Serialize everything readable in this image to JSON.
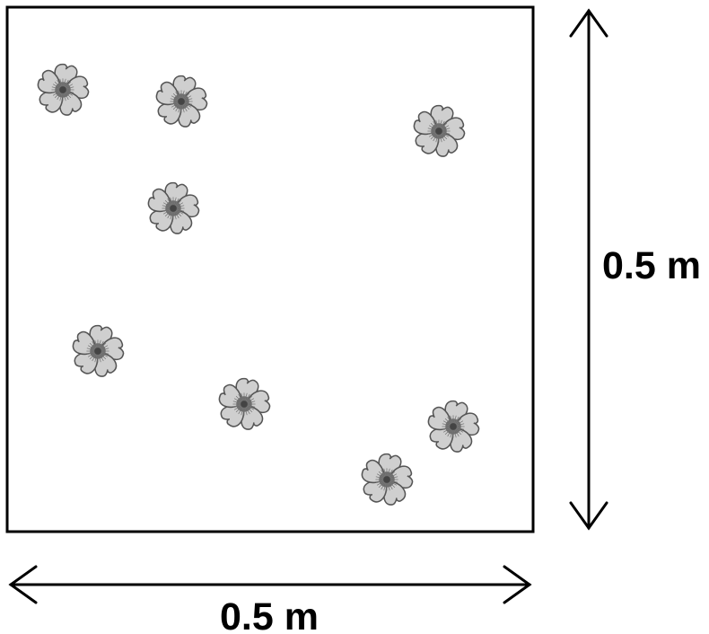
{
  "quadrat": {
    "width_label": "0.5 m",
    "height_label": "0.5 m",
    "flower_count": 8,
    "flower_icon": "flower-icon"
  },
  "colors": {
    "outline": "#000000",
    "petal_fill": "#cfcfcf",
    "petal_stroke": "#555555",
    "center": "#666666"
  }
}
